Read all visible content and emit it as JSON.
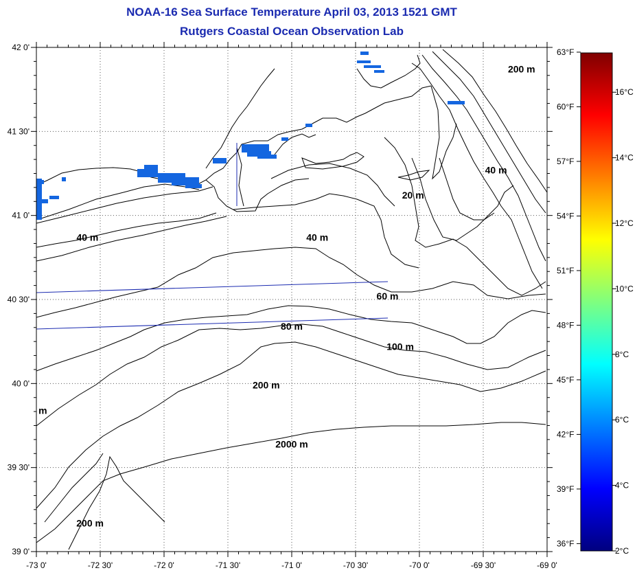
{
  "header": {
    "title": "NOAA-16 Sea Surface Temperature April 03, 2013 1521 GMT",
    "subtitle": "Rutgers Coastal Ocean Observation Lab"
  },
  "axes": {
    "x_ticks": [
      "-73 0'",
      "-72 30'",
      "-72 0'",
      "-71 30'",
      "-71 0'",
      "-70 30'",
      "-70 0'",
      "-69 30'",
      "-69 0'"
    ],
    "x_values": [
      -73.0,
      -72.5,
      -72.0,
      -71.5,
      -71.0,
      -70.5,
      -70.0,
      -69.5,
      -69.0
    ],
    "y_ticks": [
      "42 0'",
      "41 30'",
      "41 0'",
      "40 30'",
      "40 0'",
      "39 30'",
      "39 0'"
    ],
    "y_values": [
      42.0,
      41.5,
      41.0,
      40.5,
      40.0,
      39.5,
      39.0
    ],
    "fahrenheit_ticks": [
      "63°F",
      "60°F",
      "57°F",
      "54°F",
      "51°F",
      "48°F",
      "45°F",
      "42°F",
      "39°F",
      "36°F"
    ],
    "lon_range": [
      -73.0,
      -69.0
    ],
    "lat_range": [
      39.0,
      42.0
    ],
    "grid": true
  },
  "colorbar": {
    "celsius_ticks": [
      "16°C",
      "14°C",
      "12°C",
      "10°C",
      "8°C",
      "6°C",
      "4°C",
      "2°C"
    ],
    "celsius_values": [
      16,
      14,
      12,
      10,
      8,
      6,
      4,
      2
    ],
    "range_c": [
      2,
      17.2
    ],
    "fahrenheit_values": [
      63,
      60,
      57,
      54,
      51,
      48,
      45,
      42,
      39,
      36
    ],
    "stops": [
      "#00007f",
      "#0000ff",
      "#007fff",
      "#00ffff",
      "#7fff7f",
      "#ffff00",
      "#ff7f00",
      "#ff0000",
      "#7f0000"
    ]
  },
  "contours": {
    "labels": [
      {
        "text": "200 m",
        "lon": -69.2,
        "lat": 41.85
      },
      {
        "text": "40 m",
        "lon": -69.4,
        "lat": 41.25
      },
      {
        "text": "20 m",
        "lon": -70.05,
        "lat": 41.1
      },
      {
        "text": "40 m",
        "lon": -70.8,
        "lat": 40.85
      },
      {
        "text": "40 m",
        "lon": -72.6,
        "lat": 40.85
      },
      {
        "text": "60 m",
        "lon": -70.25,
        "lat": 40.5
      },
      {
        "text": "80 m",
        "lon": -71.0,
        "lat": 40.32
      },
      {
        "text": "100 m",
        "lon": -70.15,
        "lat": 40.2
      },
      {
        "text": "200 m",
        "lon": -71.2,
        "lat": 39.97
      },
      {
        "text": "2000 m",
        "lon": -71.0,
        "lat": 39.62
      },
      {
        "text": "200 m",
        "lon": -72.58,
        "lat": 39.15
      },
      {
        "text": "m",
        "lon": -72.95,
        "lat": 39.82
      }
    ]
  },
  "colors": {
    "title": "#1a2ab0",
    "sst_pixels": "#1466e0",
    "track": "#1a2ab0"
  }
}
